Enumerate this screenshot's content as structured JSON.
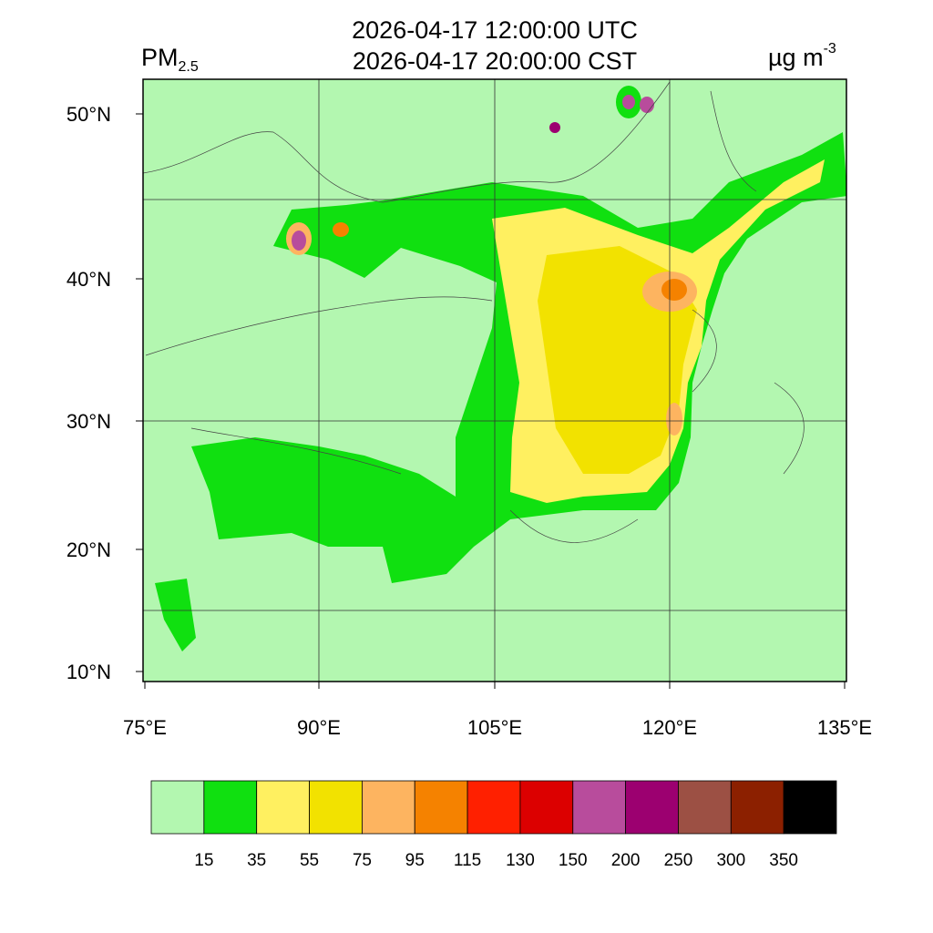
{
  "header": {
    "title_lines": [
      "2026-04-17 12:00:00 UTC",
      "2026-04-17 20:00:00 CST"
    ],
    "variable": "PM",
    "variable_subscript": "2.5",
    "units": "µg m",
    "units_superscript": "-3"
  },
  "map": {
    "lat_labels": [
      "50°N",
      "40°N",
      "30°N",
      "20°N",
      "10°N"
    ],
    "lon_labels": [
      "75°E",
      "90°E",
      "105°E",
      "120°E",
      "135°E"
    ]
  },
  "legend": {
    "levels": [
      15,
      35,
      55,
      75,
      95,
      115,
      130,
      150,
      200,
      250,
      300,
      350
    ],
    "colors": [
      "#b3f7b0",
      "#10e010",
      "#fff060",
      "#f2e200",
      "#fdb460",
      "#f58200",
      "#ff2000",
      "#dc0000",
      "#b84c9c",
      "#9c0070",
      "#9c5044",
      "#8c2000",
      "#000000"
    ]
  }
}
